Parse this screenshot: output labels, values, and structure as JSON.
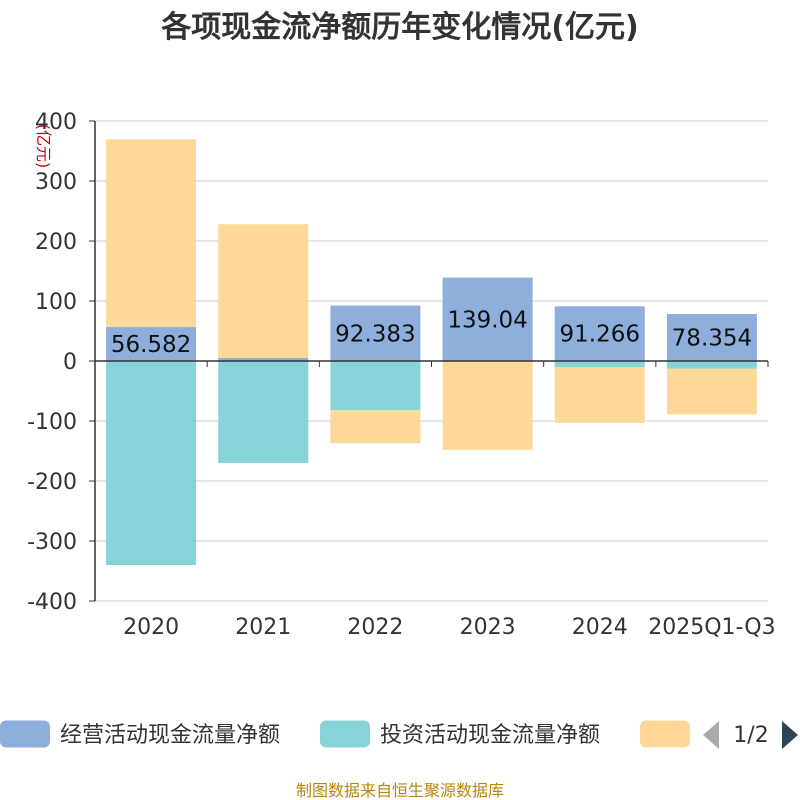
{
  "title": "各项现金流净额历年变化情况(亿元)",
  "source": "制图数据来自恒生聚源数据库",
  "colors": {
    "operating": "#8eaedc",
    "investing": "#86d4d8",
    "financing": "#fed898",
    "axis": "#333333",
    "grid": "#cccccc",
    "pager_active": "#2f4554",
    "pager_inactive": "#aaaaaa"
  },
  "legend": {
    "items": [
      "经营活动现金流量净额",
      "投资活动现金流量净额",
      ""
    ],
    "page": "1/2",
    "prev_icon": "triangle-left-icon",
    "next_icon": "triangle-right-icon"
  },
  "chart_data": {
    "type": "bar",
    "stacked": true,
    "title": "各项现金流净额历年变化情况(亿元)",
    "ylabel": "(亿元)",
    "ylim": [
      -400,
      400
    ],
    "yticks": [
      -400,
      -300,
      -200,
      -100,
      0,
      100,
      200,
      300,
      400
    ],
    "grid": true,
    "legend_position": "bottom",
    "categories": [
      "2020",
      "2021",
      "2022",
      "2023",
      "2024",
      "2025Q1-Q3"
    ],
    "series": [
      {
        "name": "经营活动现金流量净额",
        "values": [
          56.582,
          5,
          92.383,
          139.04,
          91.266,
          78.354
        ],
        "labels": [
          "56.582",
          "",
          "92.383",
          "139.04",
          "91.266",
          "78.354"
        ]
      },
      {
        "name": "投资活动现金流量净额",
        "values": [
          -340,
          -170,
          -82,
          0,
          -10,
          -13
        ]
      },
      {
        "name": "",
        "values": [
          313,
          223,
          -55,
          -148,
          -93,
          -76
        ]
      }
    ]
  }
}
